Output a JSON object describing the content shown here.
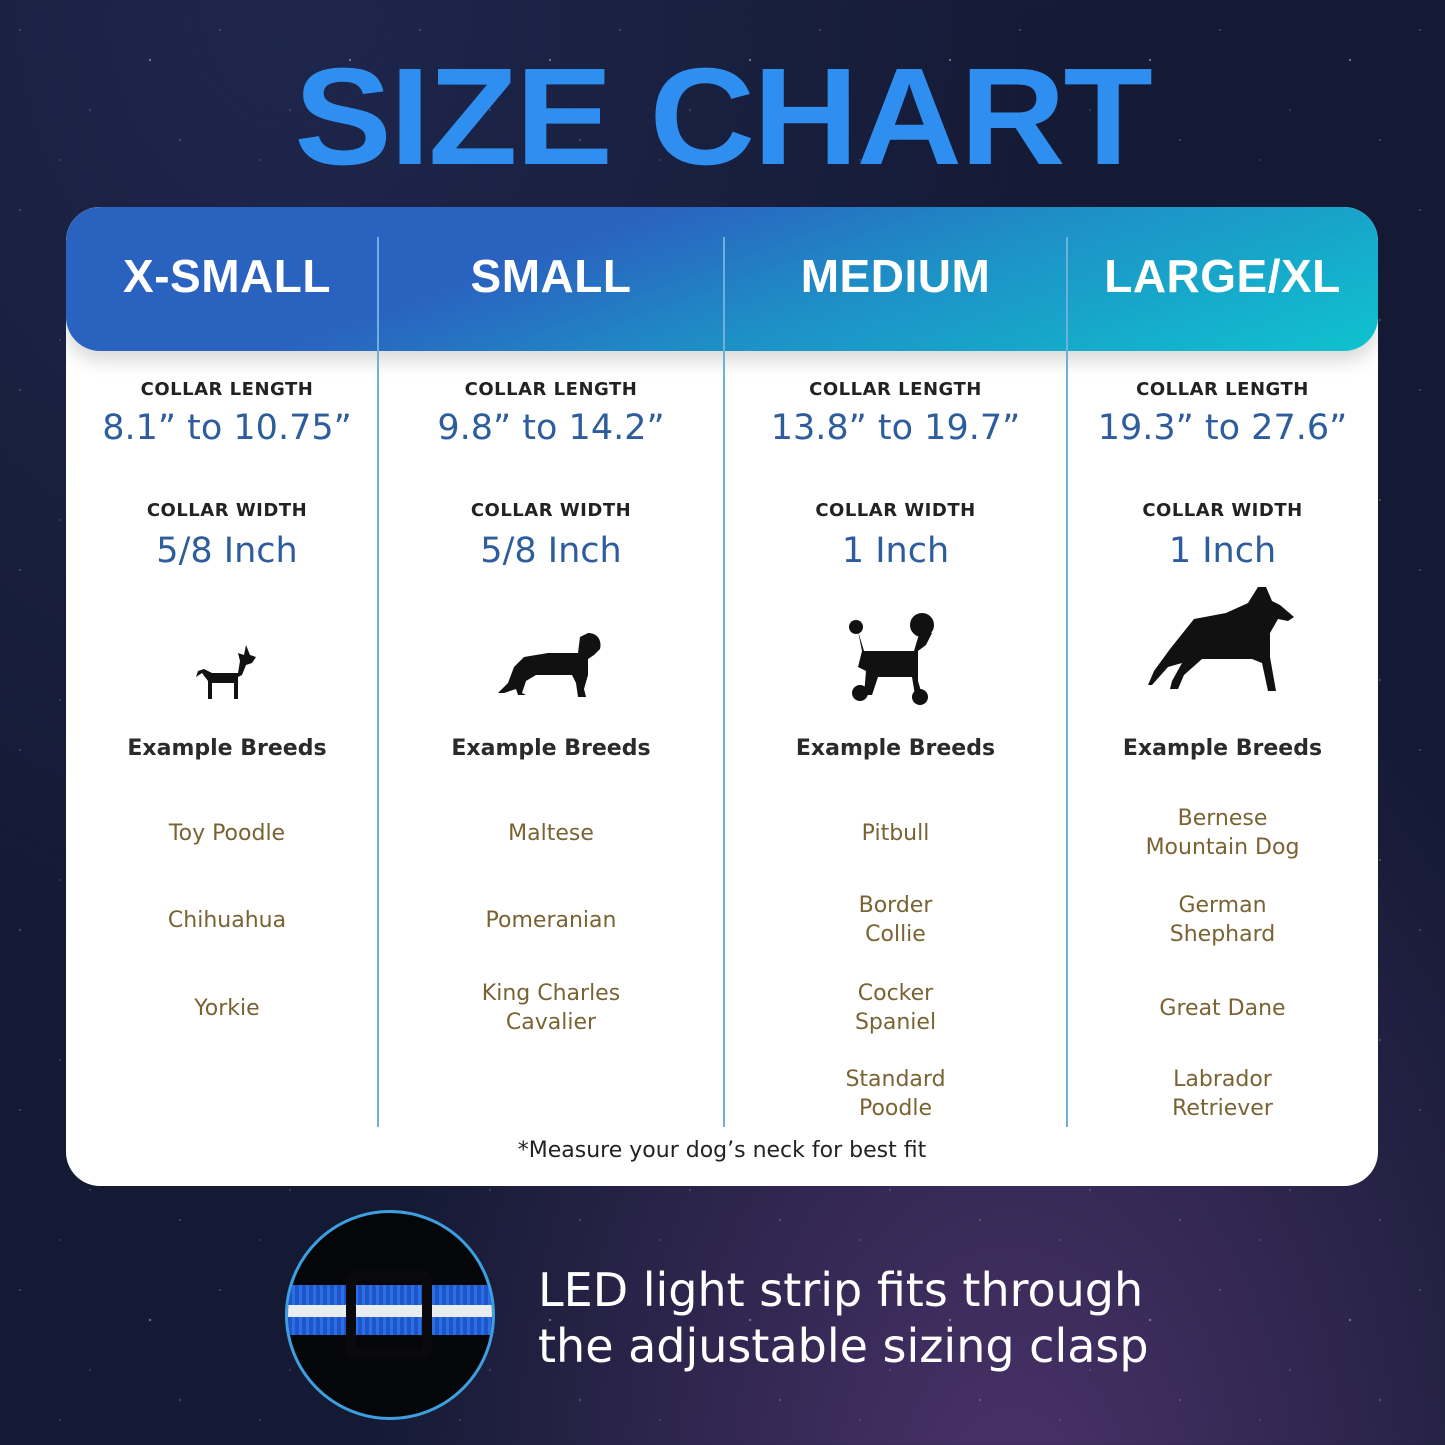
{
  "title": "SIZE CHART",
  "columns": [
    {
      "size": "X-SMALL",
      "length_label": "COLLAR LENGTH",
      "length": "8.1” to 10.75”",
      "width_label": "COLLAR WIDTH",
      "width": "5/8 Inch",
      "dog_icon": "chihuahua-silhouette",
      "examples_label": "Example Breeds",
      "breeds": [
        "Toy Poodle",
        "Chihuahua",
        "Yorkie"
      ]
    },
    {
      "size": "SMALL",
      "length_label": "COLLAR LENGTH",
      "length": "9.8” to 14.2”",
      "width_label": "COLLAR WIDTH",
      "width": "5/8 Inch",
      "dog_icon": "cavalier-silhouette",
      "examples_label": "Example Breeds",
      "breeds": [
        "Maltese",
        "Pomeranian",
        "King Charles\nCavalier"
      ]
    },
    {
      "size": "MEDIUM",
      "length_label": "COLLAR LENGTH",
      "length": "13.8” to 19.7”",
      "width_label": "COLLAR WIDTH",
      "width": "1 Inch",
      "dog_icon": "poodle-silhouette",
      "examples_label": "Example Breeds",
      "breeds": [
        "Pitbull",
        "Border\nCollie",
        "Cocker\nSpaniel",
        "Standard\nPoodle"
      ]
    },
    {
      "size": "LARGE/XL",
      "length_label": "COLLAR LENGTH",
      "length": "19.3” to 27.6”",
      "width_label": "COLLAR WIDTH",
      "width": "1 Inch",
      "dog_icon": "german-shepherd-silhouette",
      "examples_label": "Example Breeds",
      "breeds": [
        "Bernese\nMountain Dog",
        "German\nShephard",
        "Great Dane",
        "Labrador\nRetriever"
      ]
    }
  ],
  "note": "*Measure your dog’s neck for best fit",
  "caption": "LED light strip fits through\nthe adjustable sizing clasp",
  "colors": {
    "title": "#2f8ff0",
    "header_start": "#2a62c0",
    "header_end": "#0fc2cf",
    "value": "#2d5d9c",
    "breed": "#7a6332"
  }
}
